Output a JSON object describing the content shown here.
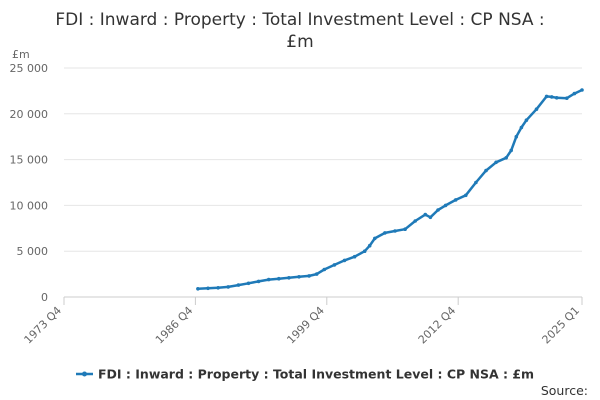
{
  "chart_data": {
    "type": "line",
    "title_lines": [
      "FDI : Inward : Property : Total Investment Level : CP NSA :",
      "£m"
    ],
    "ylabel": "£m",
    "xlabel": "",
    "ylim": [
      0,
      25000
    ],
    "yticks": [
      0,
      5000,
      10000,
      15000,
      20000,
      25000
    ],
    "ytick_labels": [
      "0",
      "5 000",
      "10 000",
      "15 000",
      "20 000",
      "25 000"
    ],
    "xlim": [
      1973.75,
      2025.0
    ],
    "xticks": [
      1973.75,
      1986.75,
      1999.75,
      2012.75,
      2025.0
    ],
    "xtick_labels": [
      "1973 Q4",
      "1986 Q4",
      "1999 Q4",
      "2012 Q4",
      "2025 Q1"
    ],
    "grid": true,
    "legend_position": "bottom",
    "series": [
      {
        "name": "FDI : Inward : Property : Total Investment Level : CP NSA : £m",
        "color": "#1f7ab8",
        "x": [
          1987.0,
          1988.0,
          1989.0,
          1990.0,
          1991.0,
          1992.0,
          1993.0,
          1994.0,
          1995.0,
          1996.0,
          1997.0,
          1998.0,
          1998.75,
          1999.5,
          2000.5,
          2001.5,
          2002.5,
          2003.5,
          2004.0,
          2004.5,
          2005.5,
          2006.5,
          2007.5,
          2008.5,
          2009.5,
          2010.0,
          2010.75,
          2011.5,
          2012.5,
          2013.5,
          2014.5,
          2015.5,
          2016.5,
          2017.5,
          2018.0,
          2018.5,
          2019.0,
          2019.5,
          2020.5,
          2021.5,
          2022.0,
          2022.5,
          2023.5,
          2024.25,
          2025.0
        ],
        "values": [
          900,
          950,
          1000,
          1100,
          1300,
          1500,
          1700,
          1900,
          2000,
          2100,
          2200,
          2300,
          2500,
          3000,
          3500,
          4000,
          4400,
          5000,
          5600,
          6400,
          7000,
          7200,
          7400,
          8300,
          9000,
          8700,
          9500,
          10000,
          10600,
          11100,
          12500,
          13800,
          14700,
          15200,
          16000,
          17500,
          18500,
          19300,
          20500,
          21900,
          21850,
          21750,
          21700,
          22200,
          22600
        ]
      }
    ],
    "source_label": "Source:"
  }
}
